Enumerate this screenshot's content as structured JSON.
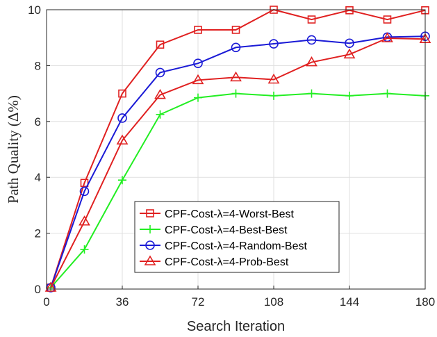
{
  "chart_data": {
    "type": "line",
    "xlabel": "Search Iteration",
    "ylabel": "Path Quality (Δ%)",
    "xlim": [
      0,
      180
    ],
    "ylim": [
      0,
      10
    ],
    "xticks": [
      0,
      36,
      72,
      108,
      144,
      180
    ],
    "yticks": [
      0,
      2,
      4,
      6,
      8,
      10
    ],
    "grid": true,
    "legend_position": "bottom-center",
    "x": [
      2,
      18,
      36,
      54,
      72,
      90,
      108,
      126,
      144,
      162,
      180
    ],
    "series": [
      {
        "name": "CPF-Cost-λ=4-Worst-Best",
        "color": "#e02020",
        "marker": "square",
        "values": [
          0.05,
          3.8,
          7.0,
          8.75,
          9.28,
          9.28,
          10.0,
          9.65,
          9.98,
          9.65,
          9.98
        ]
      },
      {
        "name": "CPF-Cost-λ=4-Best-Best",
        "color": "#22ee22",
        "marker": "plus",
        "values": [
          0.05,
          1.42,
          3.9,
          6.25,
          6.85,
          7.0,
          6.92,
          7.0,
          6.92,
          7.0,
          6.92
        ]
      },
      {
        "name": "CPF-Cost-λ=4-Random-Best",
        "color": "#1a1ad6",
        "marker": "circle",
        "values": [
          0.05,
          3.5,
          6.12,
          7.75,
          8.08,
          8.65,
          8.78,
          8.92,
          8.8,
          9.02,
          9.05
        ]
      },
      {
        "name": "CPF-Cost-λ=4-Prob-Best",
        "color": "#e02020",
        "marker": "triangle",
        "values": [
          0.05,
          2.42,
          5.32,
          6.95,
          7.48,
          7.58,
          7.5,
          8.12,
          8.4,
          8.98,
          8.95
        ]
      }
    ]
  }
}
